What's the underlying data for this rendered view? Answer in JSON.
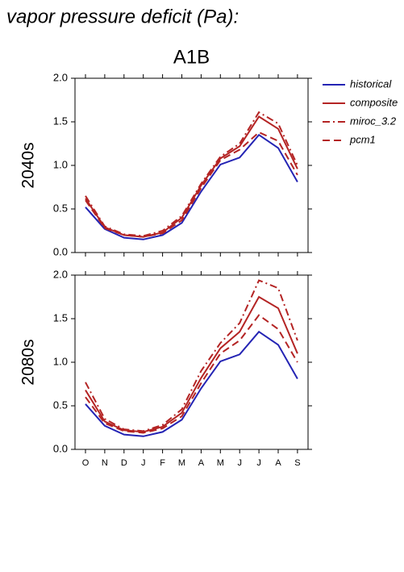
{
  "title": "vapor pressure deficit (Pa):",
  "chart_data": [
    {
      "type": "line",
      "title": "A1B",
      "ylabel": "2040s",
      "ylim": [
        0,
        2
      ],
      "yticks": [
        {
          "value": 0,
          "label": "0.0"
        },
        {
          "value": 0.5,
          "label": "0.5"
        },
        {
          "value": 1,
          "label": "1.0"
        },
        {
          "value": 1.5,
          "label": "1.5"
        },
        {
          "value": 2,
          "label": "2.0"
        }
      ],
      "series": [
        {
          "name": "historical",
          "color": "#2424b4",
          "style": "solid",
          "values": [
            0.52,
            0.27,
            0.17,
            0.15,
            0.2,
            0.34,
            0.7,
            1.01,
            1.09,
            1.35,
            1.2,
            0.81
          ]
        },
        {
          "name": "composite",
          "color": "#b42424",
          "style": "solid",
          "values": [
            0.62,
            0.29,
            0.2,
            0.18,
            0.23,
            0.4,
            0.77,
            1.08,
            1.22,
            1.56,
            1.42,
            0.96
          ]
        },
        {
          "name": "miroc_3.2",
          "color": "#b42424",
          "style": "dashdot",
          "values": [
            0.65,
            0.3,
            0.21,
            0.19,
            0.25,
            0.42,
            0.79,
            1.1,
            1.25,
            1.61,
            1.48,
            1.0
          ]
        },
        {
          "name": "pcm1",
          "color": "#b42424",
          "style": "dashed",
          "values": [
            0.6,
            0.28,
            0.2,
            0.18,
            0.22,
            0.37,
            0.74,
            1.06,
            1.18,
            1.38,
            1.28,
            0.89
          ]
        }
      ]
    },
    {
      "type": "line",
      "ylabel": "2080s",
      "ylim": [
        0,
        2
      ],
      "categories": [
        "O",
        "N",
        "D",
        "J",
        "F",
        "M",
        "A",
        "M",
        "J",
        "J",
        "A",
        "S"
      ],
      "yticks": [
        {
          "value": 0,
          "label": "0.0"
        },
        {
          "value": 0.5,
          "label": "0.5"
        },
        {
          "value": 1,
          "label": "1.0"
        },
        {
          "value": 1.5,
          "label": "1.5"
        },
        {
          "value": 2,
          "label": "2.0"
        }
      ],
      "series": [
        {
          "color": "#2424b4",
          "style": "solid",
          "values": [
            0.52,
            0.27,
            0.17,
            0.15,
            0.2,
            0.34,
            0.7,
            1.01,
            1.09,
            1.35,
            1.2,
            0.81
          ]
        },
        {
          "color": "#b42424",
          "style": "solid",
          "values": [
            0.68,
            0.32,
            0.22,
            0.2,
            0.26,
            0.42,
            0.82,
            1.16,
            1.35,
            1.75,
            1.62,
            1.1
          ]
        },
        {
          "color": "#b42424",
          "style": "dashdot",
          "values": [
            0.77,
            0.35,
            0.23,
            0.21,
            0.28,
            0.46,
            0.9,
            1.22,
            1.45,
            1.94,
            1.85,
            1.25
          ]
        },
        {
          "color": "#b42424",
          "style": "dashed",
          "values": [
            0.6,
            0.3,
            0.21,
            0.19,
            0.24,
            0.38,
            0.76,
            1.1,
            1.25,
            1.54,
            1.38,
            1.0
          ]
        }
      ]
    }
  ]
}
